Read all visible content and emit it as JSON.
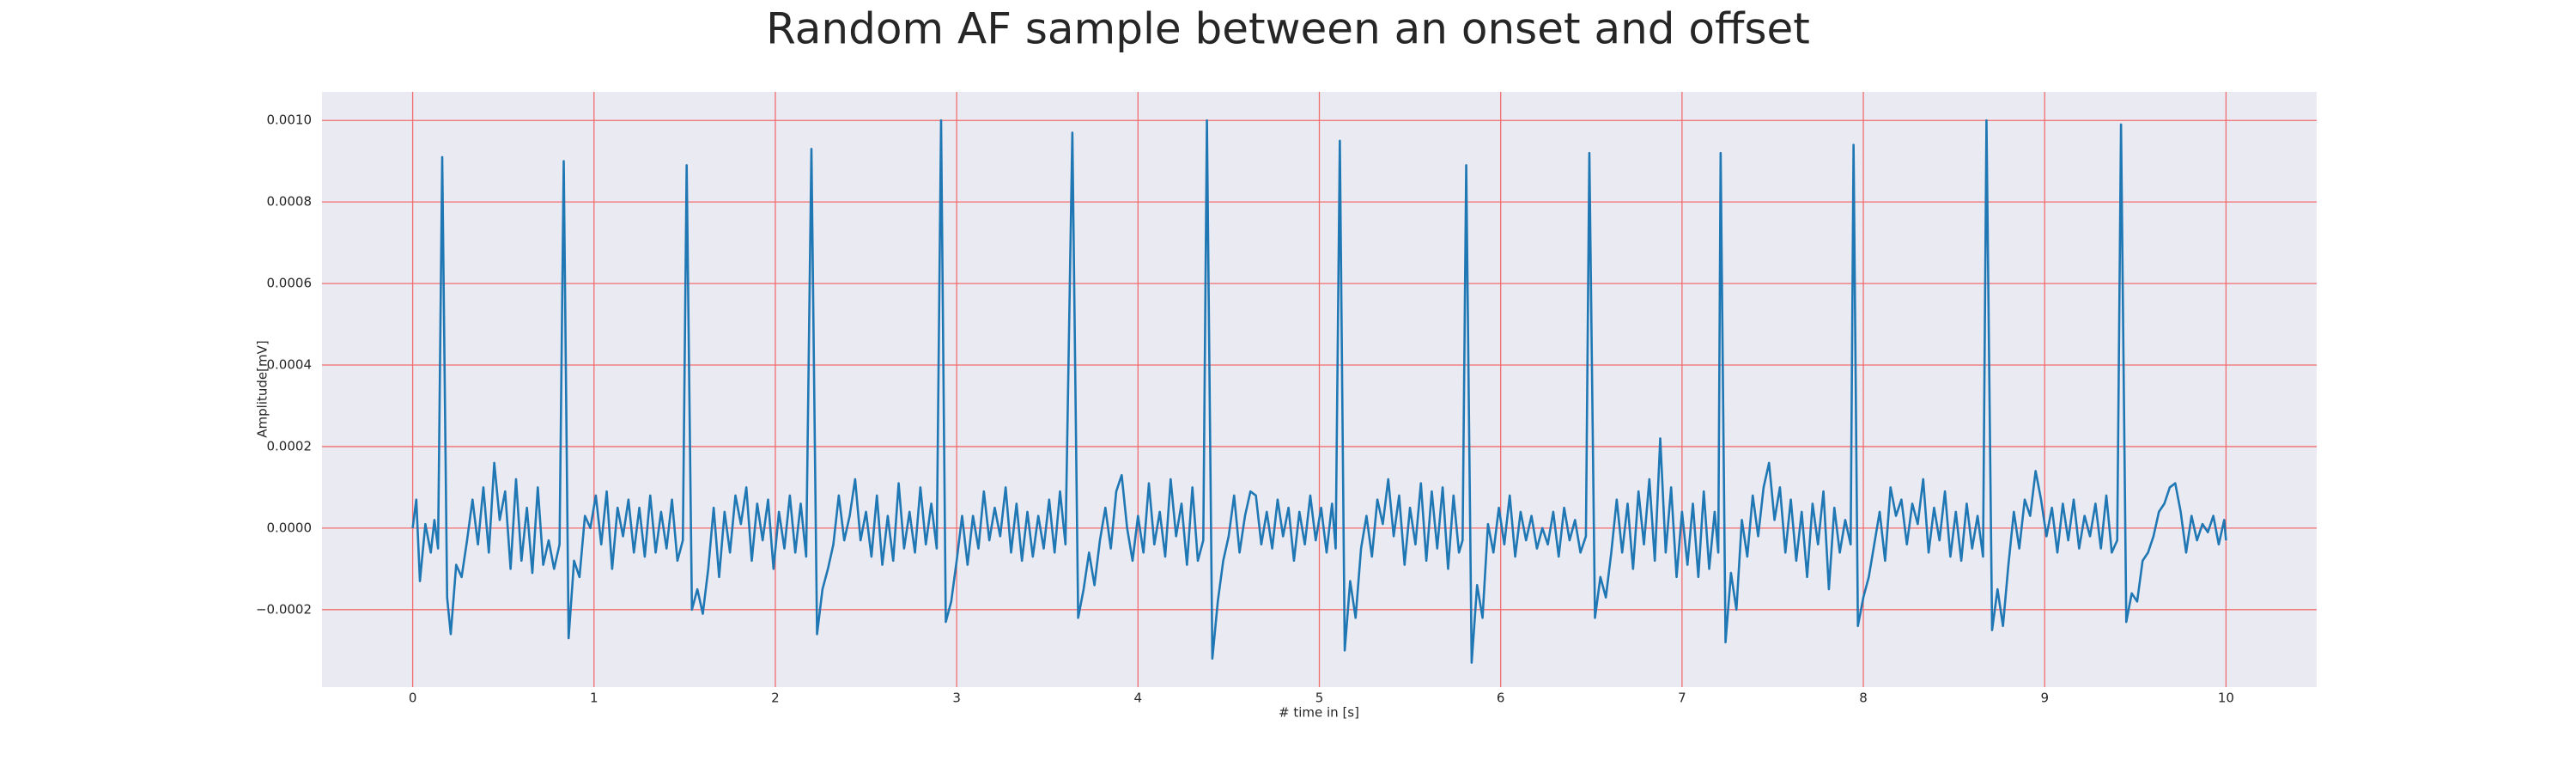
{
  "chart_data": {
    "type": "line",
    "title": "Random AF sample between an onset and offset",
    "xlabel": "# time in [s]",
    "ylabel": "Amplitude[mV]",
    "color": "#1f77b4",
    "grid": true,
    "grid_color": "#f26d6d",
    "background": "#eaeaf2",
    "xlim": [
      -0.5,
      10.5
    ],
    "xticks": [
      0,
      1,
      2,
      3,
      4,
      5,
      6,
      7,
      8,
      9,
      10
    ],
    "ylim": [
      -0.00039,
      0.00107
    ],
    "yticks": [
      {
        "value": -0.0002,
        "label": "−0.0002"
      },
      {
        "value": 0,
        "label": "0.0000"
      },
      {
        "value": 0.0002,
        "label": "0.0002"
      },
      {
        "value": 0.0004,
        "label": "0.0004"
      },
      {
        "value": 0.0006,
        "label": "0.0006"
      },
      {
        "value": 0.0008,
        "label": "0.0008"
      },
      {
        "value": 0.001,
        "label": "0.0010"
      }
    ],
    "x": [
      0.0,
      0.02,
      0.04,
      0.07,
      0.1,
      0.12,
      0.14,
      0.163,
      0.19,
      0.21,
      0.24,
      0.27,
      0.3,
      0.33,
      0.36,
      0.39,
      0.42,
      0.45,
      0.48,
      0.51,
      0.54,
      0.57,
      0.6,
      0.63,
      0.66,
      0.69,
      0.72,
      0.75,
      0.78,
      0.81,
      0.833,
      0.86,
      0.89,
      0.92,
      0.95,
      0.98,
      1.01,
      1.04,
      1.07,
      1.1,
      1.13,
      1.16,
      1.19,
      1.22,
      1.25,
      1.28,
      1.31,
      1.34,
      1.37,
      1.4,
      1.43,
      1.46,
      1.49,
      1.511,
      1.54,
      1.57,
      1.6,
      1.63,
      1.66,
      1.69,
      1.72,
      1.75,
      1.78,
      1.81,
      1.84,
      1.87,
      1.9,
      1.93,
      1.96,
      1.99,
      2.02,
      2.05,
      2.08,
      2.11,
      2.14,
      2.17,
      2.199,
      2.23,
      2.26,
      2.29,
      2.32,
      2.35,
      2.38,
      2.41,
      2.44,
      2.47,
      2.5,
      2.53,
      2.56,
      2.59,
      2.62,
      2.65,
      2.68,
      2.71,
      2.74,
      2.77,
      2.8,
      2.83,
      2.86,
      2.89,
      2.914,
      2.94,
      2.97,
      3.0,
      3.03,
      3.06,
      3.09,
      3.12,
      3.15,
      3.18,
      3.21,
      3.24,
      3.27,
      3.3,
      3.33,
      3.36,
      3.39,
      3.42,
      3.45,
      3.48,
      3.51,
      3.54,
      3.57,
      3.6,
      3.638,
      3.67,
      3.7,
      3.73,
      3.76,
      3.79,
      3.82,
      3.85,
      3.88,
      3.91,
      3.94,
      3.97,
      4.0,
      4.03,
      4.06,
      4.09,
      4.12,
      4.15,
      4.18,
      4.21,
      4.24,
      4.27,
      4.3,
      4.33,
      4.36,
      4.38,
      4.41,
      4.44,
      4.47,
      4.5,
      4.53,
      4.56,
      4.59,
      4.62,
      4.65,
      4.68,
      4.71,
      4.74,
      4.77,
      4.8,
      4.83,
      4.86,
      4.89,
      4.92,
      4.95,
      4.98,
      5.01,
      5.04,
      5.07,
      5.09,
      5.113,
      5.14,
      5.17,
      5.2,
      5.23,
      5.26,
      5.29,
      5.32,
      5.35,
      5.38,
      5.41,
      5.44,
      5.47,
      5.5,
      5.53,
      5.56,
      5.59,
      5.62,
      5.65,
      5.68,
      5.71,
      5.74,
      5.77,
      5.79,
      5.81,
      5.84,
      5.87,
      5.9,
      5.93,
      5.96,
      5.99,
      6.02,
      6.05,
      6.08,
      6.11,
      6.14,
      6.17,
      6.2,
      6.23,
      6.26,
      6.29,
      6.32,
      6.35,
      6.38,
      6.41,
      6.44,
      6.47,
      6.489,
      6.52,
      6.55,
      6.58,
      6.61,
      6.64,
      6.67,
      6.7,
      6.73,
      6.76,
      6.79,
      6.82,
      6.85,
      6.88,
      6.91,
      6.94,
      6.97,
      7.0,
      7.03,
      7.06,
      7.09,
      7.12,
      7.15,
      7.18,
      7.2,
      7.213,
      7.24,
      7.27,
      7.3,
      7.33,
      7.36,
      7.39,
      7.42,
      7.45,
      7.48,
      7.51,
      7.54,
      7.57,
      7.6,
      7.63,
      7.66,
      7.69,
      7.72,
      7.75,
      7.78,
      7.81,
      7.84,
      7.87,
      7.9,
      7.93,
      7.946,
      7.97,
      8.0,
      8.03,
      8.06,
      8.09,
      8.12,
      8.15,
      8.18,
      8.21,
      8.24,
      8.27,
      8.3,
      8.33,
      8.36,
      8.39,
      8.42,
      8.45,
      8.48,
      8.51,
      8.54,
      8.57,
      8.6,
      8.63,
      8.66,
      8.679,
      8.71,
      8.74,
      8.77,
      8.8,
      8.83,
      8.86,
      8.89,
      8.92,
      8.95,
      8.98,
      9.01,
      9.04,
      9.07,
      9.1,
      9.13,
      9.16,
      9.19,
      9.22,
      9.25,
      9.28,
      9.31,
      9.34,
      9.37,
      9.4,
      9.421,
      9.45,
      9.48,
      9.51,
      9.54,
      9.57,
      9.6,
      9.63,
      9.66,
      9.69,
      9.72,
      9.75,
      9.78,
      9.81,
      9.84,
      9.87,
      9.9,
      9.93,
      9.96,
      9.99,
      10.0
    ],
    "values": [
      0.0,
      7e-05,
      -0.00013,
      1e-05,
      -6e-05,
      2e-05,
      -5e-05,
      0.00091,
      -0.00017,
      -0.00026,
      -9e-05,
      -0.00012,
      -3e-05,
      7e-05,
      -4e-05,
      0.0001,
      -6e-05,
      0.00016,
      2e-05,
      9e-05,
      -0.0001,
      0.00012,
      -8e-05,
      5e-05,
      -0.00011,
      0.0001,
      -9e-05,
      -3e-05,
      -0.0001,
      -4e-05,
      0.0009,
      -0.00027,
      -8e-05,
      -0.00012,
      3e-05,
      0.0,
      8e-05,
      -4e-05,
      9e-05,
      -0.0001,
      5e-05,
      -2e-05,
      7e-05,
      -6e-05,
      5e-05,
      -7e-05,
      8e-05,
      -6e-05,
      4e-05,
      -5e-05,
      7e-05,
      -8e-05,
      -3e-05,
      0.00089,
      -0.0002,
      -0.00015,
      -0.00021,
      -0.0001,
      5e-05,
      -0.00012,
      4e-05,
      -6e-05,
      8e-05,
      1e-05,
      0.0001,
      -8e-05,
      6e-05,
      -3e-05,
      7e-05,
      -0.0001,
      4e-05,
      -5e-05,
      8e-05,
      -6e-05,
      6e-05,
      -7e-05,
      0.00093,
      -0.00026,
      -0.00015,
      -0.0001,
      -4e-05,
      8e-05,
      -3e-05,
      3e-05,
      0.00012,
      -3e-05,
      4e-05,
      -7e-05,
      8e-05,
      -9e-05,
      3e-05,
      -8e-05,
      0.00011,
      -5e-05,
      4e-05,
      -6e-05,
      0.0001,
      -4e-05,
      6e-05,
      -5e-05,
      0.001,
      -0.00023,
      -0.00018,
      -8e-05,
      3e-05,
      -9e-05,
      3e-05,
      -5e-05,
      9e-05,
      -3e-05,
      5e-05,
      -2e-05,
      0.0001,
      -6e-05,
      6e-05,
      -8e-05,
      4e-05,
      -7e-05,
      3e-05,
      -5e-05,
      7e-05,
      -6e-05,
      9e-05,
      -4e-05,
      0.00097,
      -0.00022,
      -0.00015,
      -6e-05,
      -0.00014,
      -3e-05,
      5e-05,
      -5e-05,
      9e-05,
      0.00013,
      0.0,
      -8e-05,
      3e-05,
      -6e-05,
      0.00011,
      -4e-05,
      4e-05,
      -7e-05,
      0.00012,
      -2e-05,
      6e-05,
      -9e-05,
      0.0001,
      -8e-05,
      -3e-05,
      0.001,
      -0.00032,
      -0.00018,
      -8e-05,
      -2e-05,
      8e-05,
      -6e-05,
      3e-05,
      9e-05,
      8e-05,
      -4e-05,
      4e-05,
      -5e-05,
      7e-05,
      -2e-05,
      5e-05,
      -8e-05,
      4e-05,
      -4e-05,
      8e-05,
      -3e-05,
      5e-05,
      -6e-05,
      6e-05,
      -5e-05,
      0.00095,
      -0.0003,
      -0.00013,
      -0.00022,
      -5e-05,
      3e-05,
      -7e-05,
      7e-05,
      1e-05,
      0.00012,
      -2e-05,
      8e-05,
      -9e-05,
      5e-05,
      -4e-05,
      0.00011,
      -8e-05,
      9e-05,
      -5e-05,
      0.0001,
      -0.0001,
      8e-05,
      -6e-05,
      -3e-05,
      0.00089,
      -0.00033,
      -0.00014,
      -0.00022,
      1e-05,
      -6e-05,
      5e-05,
      -4e-05,
      8e-05,
      -7e-05,
      4e-05,
      -3e-05,
      3e-05,
      -5e-05,
      0.0,
      -4e-05,
      4e-05,
      -7e-05,
      5e-05,
      -3e-05,
      2e-05,
      -6e-05,
      -2e-05,
      0.00092,
      -0.00022,
      -0.00012,
      -0.00017,
      -6e-05,
      7e-05,
      -6e-05,
      6e-05,
      -0.0001,
      9e-05,
      -4e-05,
      0.00012,
      -8e-05,
      0.00022,
      -6e-05,
      0.0001,
      -0.00012,
      4e-05,
      -9e-05,
      6e-05,
      -0.00012,
      9e-05,
      -0.0001,
      4e-05,
      -6e-05,
      0.00092,
      -0.00028,
      -0.00011,
      -0.0002,
      2e-05,
      -7e-05,
      8e-05,
      -2e-05,
      0.0001,
      0.00016,
      2e-05,
      0.0001,
      -6e-05,
      7e-05,
      -8e-05,
      4e-05,
      -0.00012,
      6e-05,
      -4e-05,
      9e-05,
      -0.00015,
      5e-05,
      -6e-05,
      2e-05,
      -4e-05,
      0.00094,
      -0.00024,
      -0.00017,
      -0.00012,
      -4e-05,
      4e-05,
      -8e-05,
      0.0001,
      3e-05,
      7e-05,
      -4e-05,
      6e-05,
      1e-05,
      0.00012,
      -6e-05,
      5e-05,
      -3e-05,
      9e-05,
      -7e-05,
      4e-05,
      -8e-05,
      6e-05,
      -5e-05,
      3e-05,
      -7e-05,
      0.001,
      -0.00025,
      -0.00015,
      -0.00024,
      -9e-05,
      4e-05,
      -5e-05,
      7e-05,
      3e-05,
      0.00014,
      7e-05,
      -2e-05,
      5e-05,
      -6e-05,
      6e-05,
      -3e-05,
      7e-05,
      -5e-05,
      3e-05,
      -2e-05,
      6e-05,
      -5e-05,
      8e-05,
      -6e-05,
      -3e-05,
      0.00099,
      -0.00023,
      -0.00016,
      -0.00018,
      -8e-05,
      -6e-05,
      -2e-05,
      4e-05,
      6e-05,
      0.0001,
      0.00011,
      4e-05,
      -6e-05,
      3e-05,
      -3e-05,
      1e-05,
      -1e-05,
      3e-05,
      -4e-05,
      2e-05,
      -3e-05
    ]
  }
}
